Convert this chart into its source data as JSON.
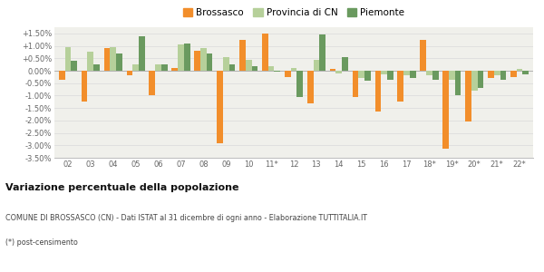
{
  "years": [
    "02",
    "03",
    "04",
    "05",
    "06",
    "07",
    "08",
    "09",
    "10",
    "11*",
    "12",
    "13",
    "14",
    "15",
    "16",
    "17",
    "18*",
    "19*",
    "20*",
    "21*",
    "22*"
  ],
  "brossasco": [
    -0.35,
    -1.25,
    0.9,
    -0.2,
    -1.0,
    0.1,
    0.8,
    -2.9,
    1.25,
    1.5,
    -0.25,
    -1.3,
    0.08,
    -1.05,
    -1.65,
    -1.25,
    1.25,
    -3.15,
    -2.05,
    -0.3,
    -0.25
  ],
  "provincia_cn": [
    0.95,
    0.75,
    0.95,
    0.25,
    0.25,
    1.05,
    0.9,
    0.55,
    0.45,
    0.2,
    0.1,
    0.45,
    -0.1,
    -0.3,
    -0.15,
    -0.2,
    -0.2,
    -0.35,
    -0.8,
    -0.2,
    0.08
  ],
  "piemonte": [
    0.4,
    0.25,
    0.7,
    1.4,
    0.25,
    1.1,
    0.7,
    0.25,
    0.2,
    -0.05,
    -1.05,
    1.45,
    0.55,
    -0.4,
    -0.35,
    -0.3,
    -0.35,
    -1.0,
    -0.7,
    -0.35,
    -0.15
  ],
  "brossasco_color": "#f28e2b",
  "provincia_cn_color": "#b6d09a",
  "piemonte_color": "#6a9a5f",
  "bg_color": "#f0f0eb",
  "grid_color": "#dddddd",
  "ylim": [
    -3.5,
    1.75
  ],
  "yticks": [
    -3.5,
    -3.0,
    -2.5,
    -2.0,
    -1.5,
    -1.0,
    -0.5,
    0.0,
    0.5,
    1.0,
    1.5
  ],
  "legend_labels": [
    "Brossasco",
    "Provincia di CN",
    "Piemonte"
  ],
  "title": "Variazione percentuale della popolazione",
  "footnote1": "COMUNE DI BROSSASCO (CN) - Dati ISTAT al 31 dicembre di ogni anno - Elaborazione TUTTITALIA.IT",
  "footnote2": "(*) post-censimento"
}
